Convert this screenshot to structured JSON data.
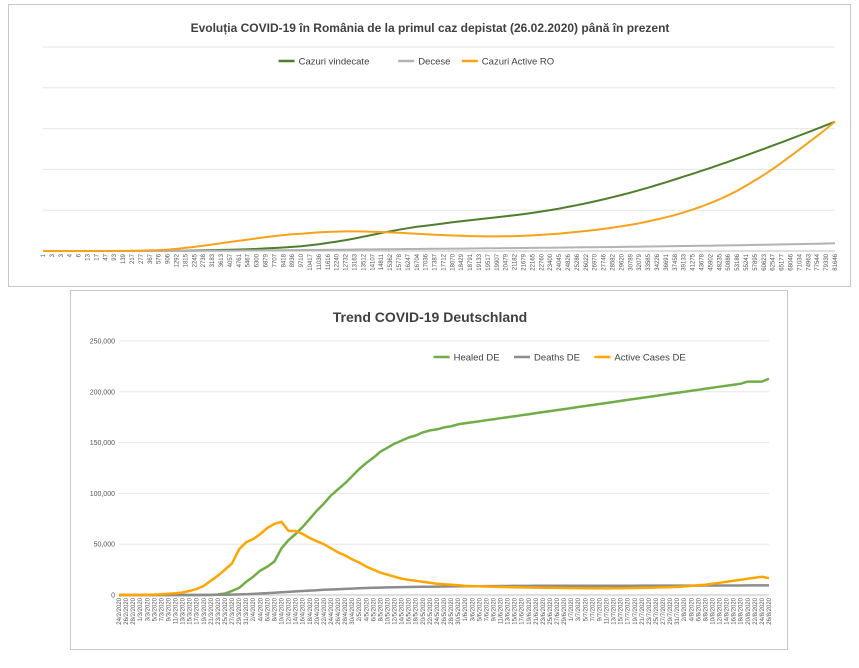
{
  "chart_data": [
    {
      "type": "line",
      "title": "Evoluția COVID-19 în România de la primul caz depistat (26.02.2020) până în prezent",
      "xlabel": "",
      "ylabel": "",
      "ylim": [
        0,
        100000
      ],
      "grid": true,
      "legend": "top-center",
      "x": [
        "1",
        "3",
        "3",
        "4",
        "6",
        "13",
        "17",
        "47",
        "93",
        "139",
        "217",
        "277",
        "367",
        "576",
        "906",
        "1292",
        "1815",
        "2245",
        "2738",
        "3183",
        "3613",
        "4057",
        "4761",
        "5467",
        "6300",
        "6879",
        "7707",
        "8418",
        "8936",
        "9710",
        "10417",
        "11036",
        "11616",
        "12240",
        "12732",
        "13163",
        "13512",
        "14107",
        "14811",
        "15362",
        "15778",
        "16247",
        "16704",
        "17036",
        "17387",
        "17712",
        "18070",
        "18429",
        "18791",
        "19133",
        "19517",
        "19907",
        "20479",
        "21182",
        "21679",
        "22165",
        "22760",
        "23400",
        "24045",
        "24826",
        "25286",
        "26022",
        "26970",
        "27746",
        "28582",
        "29620",
        "30789",
        "32079",
        "33585",
        "34226",
        "36691",
        "37458",
        "39133",
        "41275",
        "43678",
        "45902",
        "48235",
        "50886",
        "53186",
        "55241",
        "57895",
        "60623",
        "62547",
        "65177",
        "68046",
        "71034",
        "74963",
        "77544",
        "79330",
        "81646"
      ],
      "series": [
        {
          "name": "Cazuri vindecate",
          "color": "#4e7e2b",
          "values": [
            0,
            0,
            0,
            0,
            0,
            0,
            0,
            0,
            0,
            0,
            5,
            10,
            20,
            40,
            70,
            120,
            170,
            250,
            330,
            420,
            520,
            620,
            740,
            880,
            1050,
            1250,
            1450,
            1700,
            2000,
            2350,
            2800,
            3350,
            3950,
            4600,
            5350,
            6150,
            7000,
            7900,
            8800,
            9650,
            10450,
            11200,
            11850,
            12400,
            12950,
            13500,
            14050,
            14550,
            15050,
            15550,
            16050,
            16550,
            17050,
            17550,
            18100,
            18700,
            19350,
            20050,
            20800,
            21600,
            22450,
            23350,
            24300,
            25300,
            26350,
            27450,
            28600,
            29800,
            31050,
            32350,
            33700,
            35050,
            36450,
            37850,
            39300,
            40750,
            42250,
            43750,
            45300,
            46850,
            48450,
            50050,
            51650,
            53300,
            54950,
            56600,
            58250,
            59950,
            61650,
            63400
          ]
        },
        {
          "name": "Decese",
          "color": "#b3b3b3",
          "values": [
            0,
            0,
            0,
            0,
            0,
            0,
            0,
            0,
            0,
            0,
            0,
            0,
            5,
            10,
            15,
            25,
            40,
            60,
            80,
            110,
            140,
            170,
            200,
            240,
            280,
            320,
            360,
            400,
            440,
            480,
            520,
            560,
            600,
            640,
            680,
            720,
            760,
            800,
            840,
            880,
            920,
            960,
            1000,
            1040,
            1080,
            1120,
            1160,
            1200,
            1240,
            1280,
            1320,
            1360,
            1400,
            1440,
            1480,
            1520,
            1570,
            1620,
            1670,
            1720,
            1770,
            1820,
            1870,
            1920,
            1970,
            2020,
            2080,
            2140,
            2200,
            2260,
            2320,
            2380,
            2440,
            2500,
            2560,
            2620,
            2690,
            2760,
            2830,
            2900,
            2980,
            3060,
            3140,
            3220,
            3300,
            3400,
            3500,
            3600,
            3700,
            3800
          ]
        },
        {
          "name": "Cazuri Active RO",
          "color": "#f7a21b",
          "values": [
            0,
            0,
            0,
            0,
            0,
            0,
            0,
            0,
            30,
            60,
            120,
            200,
            300,
            450,
            700,
            1050,
            1500,
            2000,
            2600,
            3200,
            3800,
            4400,
            5000,
            5600,
            6200,
            6800,
            7300,
            7800,
            8200,
            8500,
            8800,
            9100,
            9350,
            9500,
            9600,
            9600,
            9550,
            9450,
            9300,
            9100,
            8900,
            8700,
            8450,
            8200,
            8000,
            7800,
            7600,
            7450,
            7300,
            7200,
            7150,
            7150,
            7200,
            7300,
            7450,
            7650,
            7900,
            8200,
            8550,
            8950,
            9350,
            9800,
            10300,
            10850,
            11450,
            12100,
            12800,
            13600,
            14500,
            15500,
            16500,
            17600,
            18900,
            20300,
            21800,
            23500,
            25300,
            27300,
            29500,
            32000,
            34600,
            37300,
            40200,
            43300,
            46500,
            49800,
            53100,
            56400,
            59800,
            63500
          ]
        }
      ]
    },
    {
      "type": "line",
      "title": "Trend COVID-19 Deutschland",
      "xlabel": "",
      "ylabel": "",
      "ylim": [
        0,
        250000
      ],
      "grid": true,
      "legend": "top-right",
      "y_ticks": [
        "0",
        "50,000",
        "100,000",
        "150,000",
        "200,000",
        "250,000"
      ],
      "x": [
        "24/2/2020",
        "26/2/2020",
        "28/2/2020",
        "1/3/2020",
        "3/3/2020",
        "5/3/2020",
        "7/3/2020",
        "9/3/2020",
        "11/3/2020",
        "13/3/2020",
        "15/3/2020",
        "17/3/2020",
        "19/3/2020",
        "21/3/2020",
        "23/3/2020",
        "25/3/2020",
        "27/3/2020",
        "29/3/2020",
        "31/3/2020",
        "2/4/2020",
        "4/4/2020",
        "6/4/2020",
        "8/4/2020",
        "10/4/2020",
        "12/4/2020",
        "14/4/2020",
        "16/4/2020",
        "18/4/2020",
        "20/4/2020",
        "22/4/2020",
        "24/4/2020",
        "26/4/2020",
        "28/4/2020",
        "30/4/2020",
        "2/5/2020",
        "4/5/2020",
        "6/5/2020",
        "8/5/2020",
        "10/5/2020",
        "12/5/2020",
        "14/5/2020",
        "16/5/2020",
        "18/5/2020",
        "20/5/2020",
        "22/5/2020",
        "24/5/2020",
        "26/5/2020",
        "28/5/2020",
        "30/5/2020",
        "1/6/2020",
        "3/6/2020",
        "5/6/2020",
        "7/6/2020",
        "9/6/2020",
        "11/6/2020",
        "13/6/2020",
        "15/6/2020",
        "17/6/2020",
        "19/6/2020",
        "21/6/2020",
        "23/6/2020",
        "25/6/2020",
        "27/6/2020",
        "29/6/2020",
        "1/7/2020",
        "3/7/2020",
        "5/7/2020",
        "7/7/2020",
        "9/7/2020",
        "11/7/2020",
        "13/7/2020",
        "15/7/2020",
        "17/7/2020",
        "19/7/2020",
        "21/7/2020",
        "23/7/2020",
        "25/7/2020",
        "27/7/2020",
        "29/7/2020",
        "31/7/2020",
        "2/8/2020",
        "4/8/2020",
        "6/8/2020",
        "8/8/2020",
        "10/8/2020",
        "12/8/2020",
        "14/8/2020",
        "16/8/2020",
        "18/8/2020",
        "20/8/2020",
        "22/8/2020",
        "24/8/2020",
        "26/8/2020"
      ],
      "series": [
        {
          "name": "Healed DE",
          "color": "#70ad47",
          "values": [
            0,
            0,
            0,
            0,
            0,
            0,
            0,
            0,
            0,
            0,
            0,
            0,
            0,
            0,
            500,
            1500,
            4000,
            7000,
            13000,
            18000,
            24000,
            28000,
            33000,
            46000,
            54000,
            60000,
            67000,
            75000,
            83000,
            90000,
            98000,
            104000,
            110000,
            117000,
            124000,
            130000,
            135000,
            141000,
            145000,
            149000,
            152000,
            155000,
            157000,
            160000,
            162000,
            163000,
            165000,
            166000,
            168000,
            169000,
            170000,
            171000,
            172000,
            173000,
            174000,
            175000,
            176000,
            177000,
            178000,
            179000,
            180000,
            181000,
            182000,
            183000,
            184000,
            185000,
            186000,
            187000,
            188000,
            189000,
            190000,
            191000,
            192000,
            193000,
            194000,
            195000,
            196000,
            197000,
            198000,
            199000,
            200000,
            201000,
            202000,
            203000,
            204000,
            205000,
            206000,
            207000,
            208000,
            210000,
            210000,
            210000,
            213000
          ]
        },
        {
          "name": "Deaths DE",
          "color": "#8c8c8c",
          "values": [
            0,
            0,
            0,
            0,
            0,
            0,
            0,
            0,
            0,
            0,
            0,
            0,
            50,
            100,
            150,
            250,
            400,
            600,
            800,
            1100,
            1500,
            1900,
            2300,
            2700,
            3100,
            3500,
            3900,
            4300,
            4700,
            5100,
            5400,
            5700,
            6000,
            6300,
            6600,
            6900,
            7100,
            7300,
            7500,
            7700,
            7800,
            7900,
            8000,
            8100,
            8200,
            8300,
            8400,
            8500,
            8550,
            8600,
            8650,
            8700,
            8750,
            8800,
            8850,
            8900,
            8950,
            9000,
            9000,
            9050,
            9050,
            9100,
            9100,
            9100,
            9100,
            9100,
            9150,
            9150,
            9150,
            9150,
            9200,
            9200,
            9200,
            9200,
            9250,
            9250,
            9250,
            9250,
            9300,
            9300,
            9300,
            9300,
            9300,
            9350,
            9350,
            9350,
            9350,
            9350,
            9350,
            9400,
            9400,
            9400,
            9400
          ]
        },
        {
          "name": "Active Cases DE",
          "color": "#ffa500",
          "values": [
            10,
            15,
            20,
            40,
            150,
            400,
            800,
            1200,
            1700,
            2500,
            4000,
            6000,
            9000,
            14000,
            19000,
            25000,
            31000,
            45000,
            52000,
            55000,
            60000,
            66000,
            70000,
            72000,
            63000,
            63000,
            60000,
            56000,
            53000,
            50000,
            46000,
            42000,
            39000,
            35000,
            32000,
            28000,
            25000,
            22000,
            20000,
            18000,
            16000,
            15000,
            14000,
            13000,
            12000,
            11000,
            10500,
            10000,
            9500,
            9000,
            8800,
            8600,
            8400,
            8200,
            8000,
            7800,
            7600,
            7500,
            7400,
            7300,
            7200,
            7100,
            7000,
            6900,
            6800,
            6800,
            6700,
            6600,
            6600,
            6500,
            6600,
            6700,
            6800,
            6900,
            7000,
            7200,
            7400,
            7600,
            7800,
            8000,
            8500,
            9000,
            9500,
            10000,
            11000,
            12000,
            13000,
            14000,
            15000,
            16000,
            17000,
            18000,
            16500
          ]
        }
      ]
    }
  ]
}
